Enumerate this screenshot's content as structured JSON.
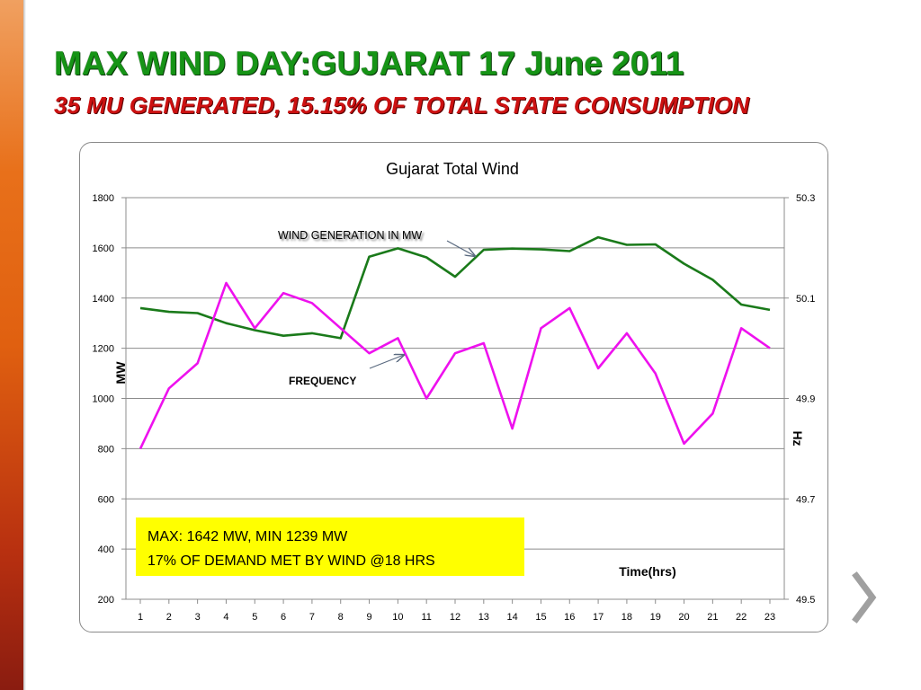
{
  "slide": {
    "title": "MAX WIND DAY:GUJARAT  17 June 2011",
    "subtitle": "35 MU GENERATED, 15.15% OF TOTAL STATE CONSUMPTION"
  },
  "chart_data": {
    "type": "line",
    "title": "Gujarat Total Wind",
    "xlabel": "Time(hrs)",
    "ylabel": "MW",
    "y2label": "Hz",
    "x": [
      1,
      2,
      3,
      4,
      5,
      6,
      7,
      8,
      9,
      10,
      11,
      12,
      13,
      14,
      15,
      16,
      17,
      18,
      19,
      20,
      21,
      22,
      23
    ],
    "ylim": [
      200,
      1800
    ],
    "y_ticks": [
      200,
      400,
      600,
      800,
      1000,
      1200,
      1400,
      1600,
      1800
    ],
    "y2lim": [
      49.5,
      50.3
    ],
    "y2_ticks": [
      49.5,
      49.7,
      49.9,
      50.1,
      50.3
    ],
    "grid": true,
    "series": [
      {
        "name": "WIND GENERATION IN MW",
        "axis": "left",
        "color": "#1a7a1a",
        "values": [
          1360,
          1345,
          1340,
          1300,
          1272,
          1250,
          1260,
          1240,
          1565,
          1598,
          1562,
          1485,
          1592,
          1597,
          1594,
          1587,
          1642,
          1612,
          1614,
          1537,
          1473,
          1374,
          1353
        ]
      },
      {
        "name": "FREQUENCY",
        "axis": "right",
        "color": "#ee11ee",
        "values": [
          49.8,
          49.92,
          49.97,
          50.13,
          50.04,
          50.11,
          50.09,
          50.04,
          49.99,
          50.02,
          49.9,
          49.99,
          50.01,
          49.84,
          50.04,
          50.08,
          49.96,
          50.03,
          49.95,
          49.81,
          49.87,
          50.04,
          50.0
        ]
      }
    ],
    "annotations": {
      "wind_label": "WIND GENERATION IN MW",
      "freq_label": "FREQUENCY",
      "callout_line1": "MAX: 1642 MW, MIN 1239 MW",
      "callout_line2": "17% OF DEMAND MET BY WIND @18 HRS"
    },
    "callout_color": "#ffff00"
  }
}
